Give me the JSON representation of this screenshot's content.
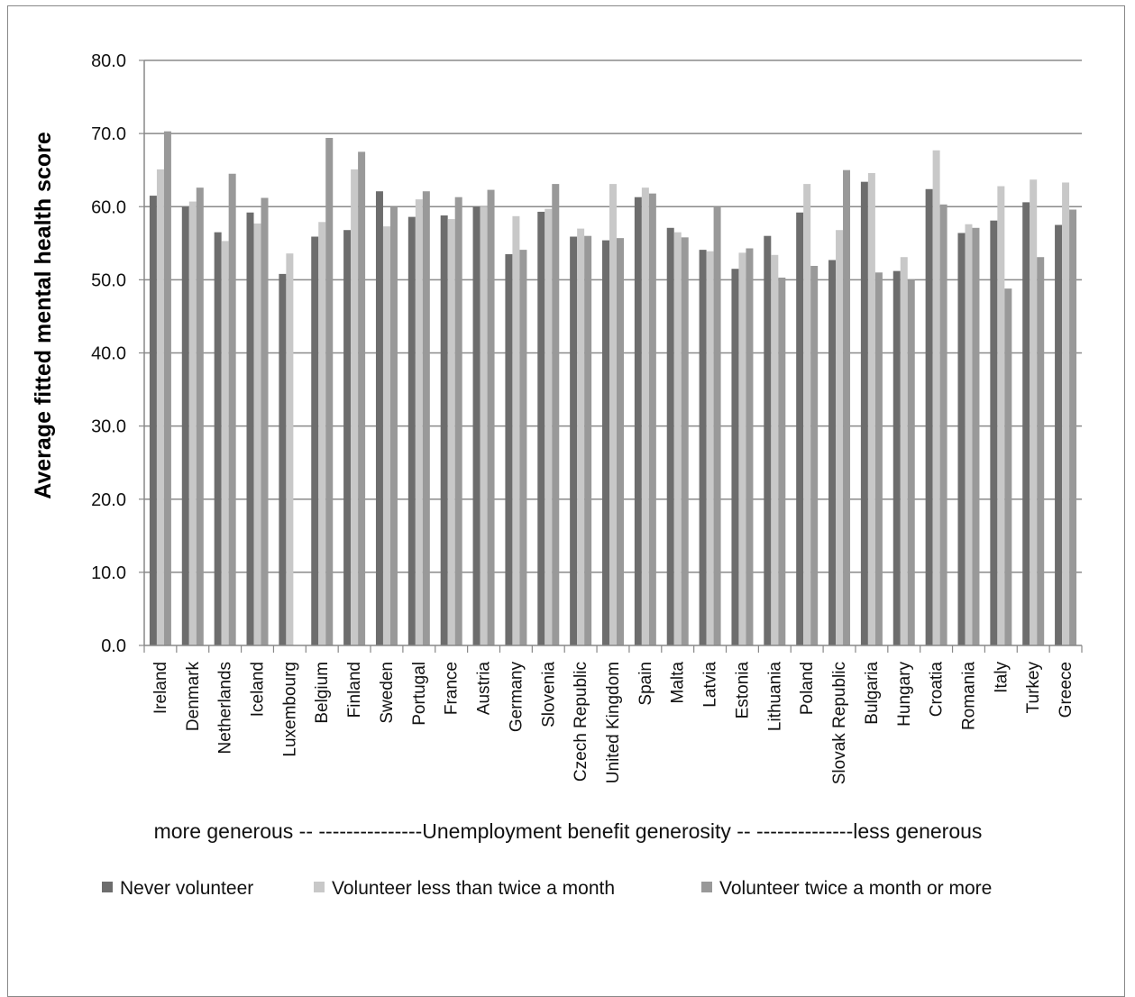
{
  "chart_data": {
    "type": "bar",
    "title": "",
    "ylabel": "Average fitted mental health score",
    "xlabel": "more generous -- ---------------Unemployment benefit generosity -- --------------less generous",
    "ylim": [
      0,
      80
    ],
    "yticks": [
      "0.0",
      "10.0",
      "20.0",
      "30.0",
      "40.0",
      "50.0",
      "60.0",
      "70.0",
      "80.0"
    ],
    "grid": true,
    "legend_position": "bottom",
    "categories": [
      "Ireland",
      "Denmark",
      "Netherlands",
      "Iceland",
      "Luxembourg",
      "Belgium",
      "Finland",
      "Sweden",
      "Portugal",
      "France",
      "Austria",
      "Germany",
      "Slovenia",
      "Czech Republic",
      "United Kingdom",
      "Spain",
      "Malta",
      "Latvia",
      "Estonia",
      "Lithuania",
      "Poland",
      "Slovak Republic",
      "Bulgaria",
      "Hungary",
      "Croatia",
      "Romania",
      "Italy",
      "Turkey",
      "Greece"
    ],
    "series": [
      {
        "name": "Never volunteer",
        "color": "#6d6d6d",
        "values": [
          61.5,
          60.0,
          56.5,
          59.2,
          50.8,
          55.9,
          56.8,
          62.1,
          58.6,
          58.8,
          60.0,
          53.5,
          59.3,
          55.9,
          55.4,
          61.3,
          57.1,
          54.1,
          51.5,
          56.0,
          59.2,
          52.7,
          63.4,
          51.2,
          62.4,
          56.4,
          58.1,
          60.6,
          57.5
        ]
      },
      {
        "name": "Volunteer less than twice a month",
        "color": "#c8c8c8",
        "values": [
          65.1,
          60.7,
          55.3,
          57.7,
          53.6,
          57.9,
          65.1,
          57.3,
          61.0,
          58.3,
          60.0,
          58.7,
          59.7,
          57.0,
          63.1,
          62.6,
          56.5,
          53.9,
          53.7,
          53.4,
          63.1,
          56.8,
          64.6,
          53.1,
          67.7,
          57.6,
          62.8,
          63.7,
          63.3
        ]
      },
      {
        "name": "Volunteer twice a month or more",
        "color": "#999999",
        "values": [
          70.3,
          62.6,
          64.5,
          61.2,
          0,
          69.4,
          67.5,
          59.9,
          62.1,
          61.3,
          62.3,
          54.1,
          63.1,
          56.0,
          55.7,
          61.8,
          55.8,
          59.9,
          54.3,
          50.3,
          51.9,
          65.0,
          51.0,
          50.0,
          60.3,
          57.1,
          48.8,
          53.1,
          59.6
        ]
      }
    ]
  }
}
